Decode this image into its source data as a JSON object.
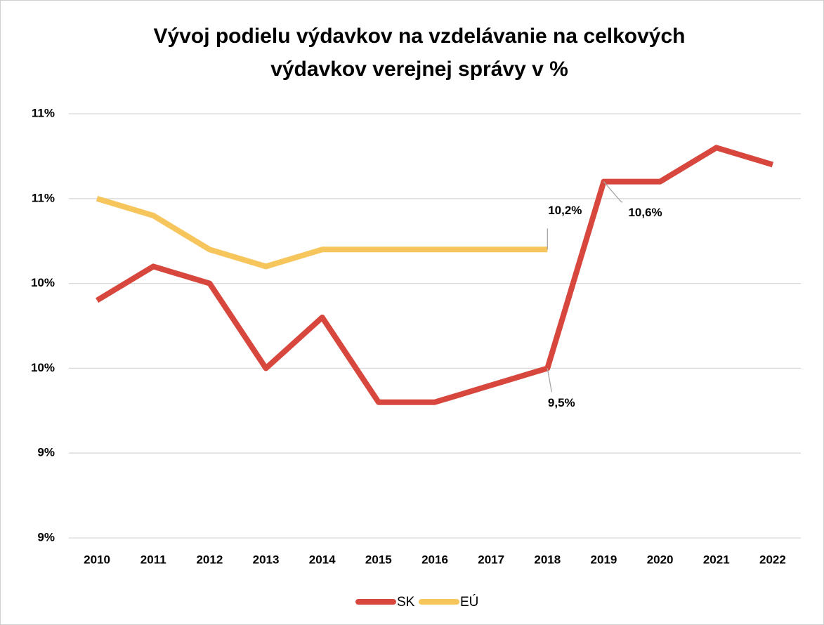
{
  "chart_data": {
    "type": "line",
    "title": "Vývoj podielu výdavkov na vzdelávanie na celkových výdavkov verejnej správy v %",
    "categories": [
      "2010",
      "2011",
      "2012",
      "2013",
      "2014",
      "2015",
      "2016",
      "2017",
      "2018",
      "2019",
      "2020",
      "2021",
      "2022"
    ],
    "series": [
      {
        "name": "SK",
        "color": "#d8473d",
        "values": [
          9.9,
          10.1,
          10.0,
          9.5,
          9.8,
          9.3,
          9.3,
          9.4,
          9.5,
          10.6,
          10.6,
          10.8,
          10.7
        ],
        "value_labels": [
          null,
          null,
          null,
          null,
          null,
          null,
          null,
          null,
          "9,5%",
          "10,6%",
          null,
          null,
          null
        ]
      },
      {
        "name": "EÚ",
        "color": "#f6c55c",
        "values": [
          10.5,
          10.4,
          10.2,
          10.1,
          10.2,
          10.2,
          10.2,
          10.2,
          10.2,
          null,
          null,
          null,
          null
        ],
        "value_labels": [
          null,
          null,
          null,
          null,
          null,
          null,
          null,
          null,
          "10,2%",
          null,
          null,
          null,
          null
        ]
      }
    ],
    "ylim": [
      8.5,
      11.0
    ],
    "yticks": [
      {
        "value": 8.5,
        "label": "9%"
      },
      {
        "value": 9.0,
        "label": "9%"
      },
      {
        "value": 9.5,
        "label": "10%"
      },
      {
        "value": 10.0,
        "label": "10%"
      },
      {
        "value": 10.5,
        "label": "11%"
      },
      {
        "value": 11.0,
        "label": "11%"
      }
    ],
    "grid": true,
    "legend": "bottom"
  }
}
